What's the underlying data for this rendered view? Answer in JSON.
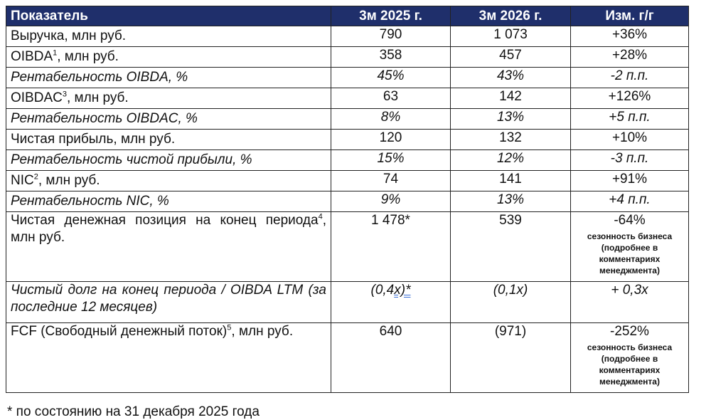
{
  "table": {
    "headers": [
      "Показатель",
      "3м 2025 г.",
      "3м 2026 г.",
      "Изм. г/г"
    ],
    "rows": [
      {
        "label": "Выручка, млн руб.",
        "v2025": "790",
        "v2026": "1 073",
        "chg": "+36%"
      },
      {
        "label_pre": "OIBDA",
        "sup": "1",
        "label_post": ", млн руб.",
        "v2025": "358",
        "v2026": "457",
        "chg": "+28%"
      },
      {
        "label": "Рентабельность OIBDA, %",
        "v2025": "45%",
        "v2026": "43%",
        "chg": "-2 п.п."
      },
      {
        "label_pre": "OIBDAC",
        "sup": "3",
        "label_post": ", млн руб.",
        "v2025": "63",
        "v2026": "142",
        "chg": "+126%"
      },
      {
        "label": "Рентабельность OIBDAC, %",
        "v2025": "8%",
        "v2026": "13%",
        "chg": "+5 п.п."
      },
      {
        "label": "Чистая прибыль, млн руб.",
        "v2025": "120",
        "v2026": "132",
        "chg": "+10%"
      },
      {
        "label": "Рентабельность чистой прибыли, %",
        "v2025": "15%",
        "v2026": "12%",
        "chg": "-3 п.п."
      },
      {
        "label_pre": "NIC",
        "sup": "2",
        "label_post": ", млн руб.",
        "v2025": "74",
        "v2026": "141",
        "chg": "+91%"
      },
      {
        "label": "Рентабельность NIC, %",
        "v2025": "9%",
        "v2026": "13%",
        "chg": "+4 п.п."
      },
      {
        "label_pre": "Чистая денежная позиция на конец периода",
        "sup": "4",
        "label_post": ", млн руб.",
        "v2025": "1 478*",
        "v2026": "539",
        "chg": "-64%",
        "note": "сезонность бизнеса (подробнее в комментариях менеджмента)"
      },
      {
        "label": "Чистый долг на конец периода / OIBDA LTM (за последние 12 месяцев)",
        "v2025_a": "(0,4",
        "v2025_b": "x)*",
        "v2026": "(0,1x)",
        "chg": "+ 0,3x"
      },
      {
        "label_pre": "FCF (Свободный денежный поток)",
        "sup": "5",
        "label_post": ", млн руб.",
        "v2025": "640",
        "v2026": "(971)",
        "chg": "-252%",
        "note": "сезонность бизнеса (подробнее в комментариях менеджмента)"
      }
    ]
  },
  "footnote": "* по состоянию на 31 декабря 2025 года"
}
